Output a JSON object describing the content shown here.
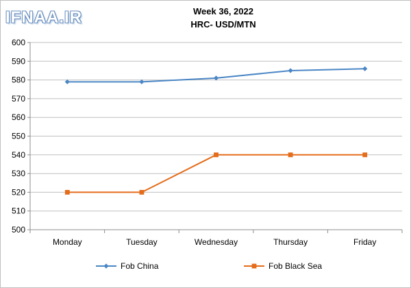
{
  "watermark": "IFNAA.IR",
  "chart_data": {
    "type": "line",
    "title": "Week 36, 2022",
    "subtitle": "HRC- USD/MTN",
    "categories": [
      "Monday",
      "Tuesday",
      "Wednesday",
      "Thursday",
      "Friday"
    ],
    "series": [
      {
        "name": "Fob China",
        "values": [
          579,
          579,
          581,
          585,
          586
        ],
        "color": "#4a86c5",
        "marker": "diamond"
      },
      {
        "name": "Fob Black Sea",
        "values": [
          520,
          520,
          540,
          540,
          540
        ],
        "color": "#e46c1a",
        "marker": "square"
      }
    ],
    "ylim": [
      500,
      600
    ],
    "yticks": [
      500,
      510,
      520,
      530,
      540,
      550,
      560,
      570,
      580,
      590,
      600
    ],
    "grid": true,
    "legend_position": "bottom"
  }
}
